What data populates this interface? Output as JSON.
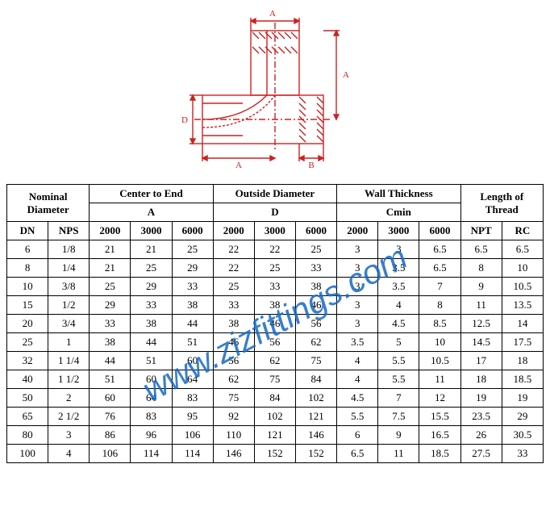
{
  "diagram": {
    "labels": {
      "A_top": "A",
      "A_bottom": "A",
      "B": "B",
      "D": "D",
      "A_right": "A"
    },
    "stroke": "#cc2222",
    "stroke_width": 1.4
  },
  "table": {
    "header_groups": [
      {
        "label": "Nominal Diameter",
        "span": 2
      },
      {
        "label": "Center to End",
        "sub": "A",
        "span": 3
      },
      {
        "label": "Outside Diameter",
        "sub": "D",
        "span": 3
      },
      {
        "label": "Wall Thickness",
        "sub": "Cmin",
        "span": 3
      },
      {
        "label": "Length of Thread",
        "span": 2
      }
    ],
    "sub_headers": [
      "DN",
      "NPS",
      "2000",
      "3000",
      "6000",
      "2000",
      "3000",
      "6000",
      "2000",
      "3000",
      "6000",
      "NPT",
      "RC"
    ],
    "rows": [
      [
        "6",
        "1/8",
        "21",
        "21",
        "25",
        "22",
        "22",
        "25",
        "3",
        "3",
        "6.5",
        "6.5",
        "6.5"
      ],
      [
        "8",
        "1/4",
        "21",
        "25",
        "29",
        "22",
        "25",
        "33",
        "3",
        "3.5",
        "6.5",
        "8",
        "10"
      ],
      [
        "10",
        "3/8",
        "25",
        "29",
        "33",
        "25",
        "33",
        "38",
        "3",
        "3.5",
        "7",
        "9",
        "10.5"
      ],
      [
        "15",
        "1/2",
        "29",
        "33",
        "38",
        "33",
        "38",
        "46",
        "3",
        "4",
        "8",
        "11",
        "13.5"
      ],
      [
        "20",
        "3/4",
        "33",
        "38",
        "44",
        "38",
        "46",
        "56",
        "3",
        "4.5",
        "8.5",
        "12.5",
        "14"
      ],
      [
        "25",
        "1",
        "38",
        "44",
        "51",
        "46",
        "56",
        "62",
        "3.5",
        "5",
        "10",
        "14.5",
        "17.5"
      ],
      [
        "32",
        "1 1/4",
        "44",
        "51",
        "60",
        "56",
        "62",
        "75",
        "4",
        "5.5",
        "10.5",
        "17",
        "18"
      ],
      [
        "40",
        "1 1/2",
        "51",
        "60",
        "64",
        "62",
        "75",
        "84",
        "4",
        "5.5",
        "11",
        "18",
        "18.5"
      ],
      [
        "50",
        "2",
        "60",
        "64",
        "83",
        "75",
        "84",
        "102",
        "4.5",
        "7",
        "12",
        "19",
        "19"
      ],
      [
        "65",
        "2 1/2",
        "76",
        "83",
        "95",
        "92",
        "102",
        "121",
        "5.5",
        "7.5",
        "15.5",
        "23.5",
        "29"
      ],
      [
        "80",
        "3",
        "86",
        "96",
        "106",
        "110",
        "121",
        "146",
        "6",
        "9",
        "16.5",
        "26",
        "30.5"
      ],
      [
        "100",
        "4",
        "106",
        "114",
        "114",
        "146",
        "152",
        "152",
        "6.5",
        "11",
        "18.5",
        "27.5",
        "33"
      ]
    ],
    "border_color": "#000000",
    "font_size": 13
  },
  "watermark": {
    "text": "www.zizfittings.com",
    "color": "#1569c7",
    "rotation_deg": -28,
    "font_size": 42
  }
}
